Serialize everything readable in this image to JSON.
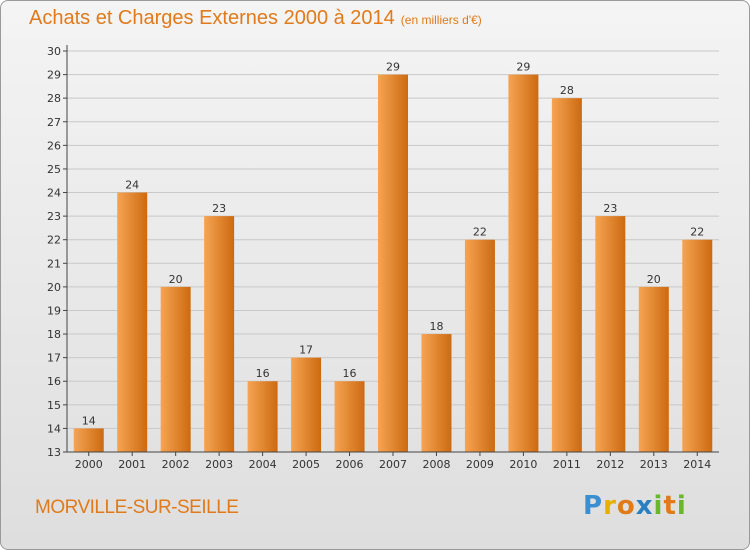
{
  "header": {
    "title": "Achats et Charges Externes 2000 à 2014",
    "subtitle": "(en milliers d'€)"
  },
  "footer": {
    "commune": "MORVILLE-SUR-SEILLE",
    "logo_letters": [
      "P",
      "r",
      "o",
      "x",
      "i",
      "t",
      "i"
    ],
    "logo_colors": [
      "#3a8fd0",
      "#e6b000",
      "#e07a1a",
      "#2a7fc0",
      "#6ab82a",
      "#e07a1a",
      "#6ab82a"
    ]
  },
  "colors": {
    "bar_light": "#f6a453",
    "bar_dark": "#cc6a10",
    "axis": "#444444",
    "grid": "#c8c8c8",
    "accent": "#e07a1a"
  },
  "chart_data": {
    "type": "bar",
    "categories": [
      "2000",
      "2001",
      "2002",
      "2003",
      "2004",
      "2005",
      "2006",
      "2007",
      "2008",
      "2009",
      "2010",
      "2011",
      "2012",
      "2013",
      "2014"
    ],
    "values": [
      14,
      24,
      20,
      23,
      16,
      17,
      16,
      29,
      18,
      22,
      29,
      28,
      23,
      20,
      22
    ],
    "title": "Achats et Charges Externes 2000 à 2014",
    "subtitle": "(en milliers d'€)",
    "xlabel": "",
    "ylabel": "",
    "ylim": [
      13,
      30
    ],
    "yticks": [
      13,
      14,
      15,
      16,
      17,
      18,
      19,
      20,
      21,
      22,
      23,
      24,
      25,
      26,
      27,
      28,
      29,
      30
    ],
    "grid": true,
    "legend": "none"
  }
}
